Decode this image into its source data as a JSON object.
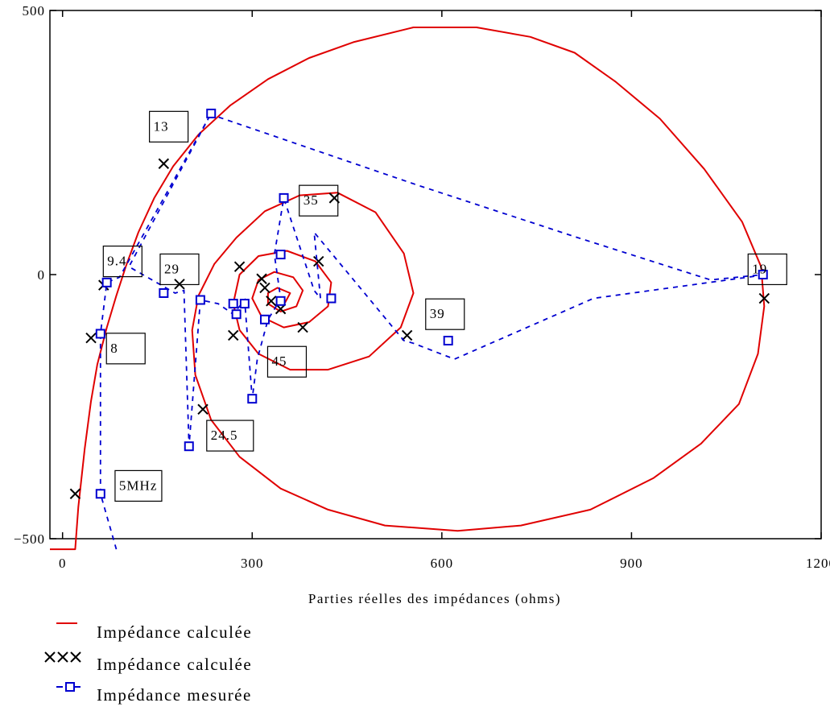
{
  "chart_data": {
    "type": "line",
    "xlabel": "Parties réelles des impédances (ohms)",
    "ylabel": "",
    "xlim": [
      -20,
      1200
    ],
    "ylim": [
      -500,
      500
    ],
    "xticks": [
      {
        "value": 0,
        "label": "0"
      },
      {
        "value": 300,
        "label": "300"
      },
      {
        "value": 600,
        "label": "600"
      },
      {
        "value": 900,
        "label": "900"
      },
      {
        "value": 1200,
        "label": "1200"
      }
    ],
    "yticks": [
      {
        "value": 500,
        "label": "500"
      },
      {
        "value": 0,
        "label": "0"
      },
      {
        "value": -500,
        "label": "−500"
      }
    ],
    "grid": false,
    "legend_position": "bottom-left",
    "colors": {
      "calc": "#e00000",
      "cross": "#000000",
      "meas": "#0000d0"
    },
    "series": [
      {
        "name": "Impédance calculée",
        "style": "solid-red",
        "points": [
          [
            -20,
            -520
          ],
          [
            20,
            -520
          ],
          [
            25,
            -440
          ],
          [
            35,
            -330
          ],
          [
            45,
            -240
          ],
          [
            55,
            -170
          ],
          [
            70,
            -100
          ],
          [
            85,
            -40
          ],
          [
            100,
            15
          ],
          [
            120,
            80
          ],
          [
            145,
            145
          ],
          [
            175,
            205
          ],
          [
            215,
            265
          ],
          [
            265,
            320
          ],
          [
            325,
            370
          ],
          [
            390,
            410
          ],
          [
            460,
            440
          ],
          [
            555,
            468
          ],
          [
            655,
            468
          ],
          [
            740,
            450
          ],
          [
            810,
            420
          ],
          [
            875,
            365
          ],
          [
            945,
            295
          ],
          [
            1015,
            200
          ],
          [
            1075,
            100
          ],
          [
            1105,
            15
          ],
          [
            1110,
            -60
          ],
          [
            1100,
            -150
          ],
          [
            1070,
            -245
          ],
          [
            1010,
            -320
          ],
          [
            935,
            -385
          ],
          [
            835,
            -445
          ],
          [
            725,
            -475
          ],
          [
            625,
            -485
          ],
          [
            510,
            -475
          ],
          [
            420,
            -445
          ],
          [
            345,
            -405
          ],
          [
            280,
            -345
          ],
          [
            235,
            -275
          ],
          [
            210,
            -190
          ],
          [
            205,
            -105
          ],
          [
            215,
            -40
          ],
          [
            240,
            20
          ],
          [
            275,
            70
          ],
          [
            320,
            120
          ],
          [
            375,
            150
          ],
          [
            435,
            155
          ],
          [
            495,
            118
          ],
          [
            540,
            40
          ],
          [
            555,
            -35
          ],
          [
            535,
            -100
          ],
          [
            485,
            -155
          ],
          [
            420,
            -180
          ],
          [
            360,
            -180
          ],
          [
            310,
            -150
          ],
          [
            280,
            -105
          ],
          [
            270,
            -55
          ],
          [
            280,
            0
          ],
          [
            310,
            35
          ],
          [
            355,
            45
          ],
          [
            400,
            25
          ],
          [
            425,
            -15
          ],
          [
            420,
            -60
          ],
          [
            390,
            -90
          ],
          [
            350,
            -100
          ],
          [
            315,
            -80
          ],
          [
            300,
            -45
          ],
          [
            310,
            -10
          ],
          [
            335,
            5
          ],
          [
            365,
            -5
          ],
          [
            380,
            -30
          ],
          [
            370,
            -60
          ],
          [
            345,
            -70
          ],
          [
            325,
            -55
          ],
          [
            325,
            -35
          ],
          [
            340,
            -25
          ],
          [
            360,
            -35
          ],
          [
            352,
            -53
          ],
          [
            338,
            -48
          ]
        ]
      },
      {
        "name": "Impédance calculée",
        "style": "black-x",
        "points": [
          [
            20,
            -415
          ],
          [
            45,
            -120
          ],
          [
            65,
            -20
          ],
          [
            160,
            210
          ],
          [
            185,
            -18
          ],
          [
            280,
            15
          ],
          [
            222,
            -255
          ],
          [
            270,
            -115
          ],
          [
            315,
            -8
          ],
          [
            320,
            -25
          ],
          [
            345,
            -65
          ],
          [
            330,
            -50
          ],
          [
            380,
            -100
          ],
          [
            405,
            25
          ],
          [
            430,
            145
          ],
          [
            545,
            -115
          ],
          [
            1110,
            -45
          ]
        ]
      },
      {
        "name": "Impédance mesurée",
        "style": "blue-dashed-square",
        "points": [
          [
            85,
            -520
          ],
          [
            60,
            -415
          ],
          [
            60,
            -112
          ],
          [
            70,
            -15
          ],
          [
            90,
            -5
          ],
          [
            235,
            305
          ],
          [
            105,
            15
          ],
          [
            178,
            -35
          ],
          [
            192,
            -30
          ],
          [
            200,
            -325
          ],
          [
            218,
            -48
          ],
          [
            246,
            -55
          ],
          [
            270,
            -75
          ],
          [
            288,
            -48
          ],
          [
            300,
            -235
          ],
          [
            308,
            -160
          ],
          [
            325,
            -85
          ],
          [
            342,
            -52
          ],
          [
            345,
            -45
          ],
          [
            335,
            38
          ],
          [
            350,
            145
          ],
          [
            398,
            -30
          ],
          [
            408,
            -45
          ],
          [
            398,
            80
          ],
          [
            540,
            -125
          ],
          [
            555,
            -130
          ],
          [
            620,
            -160
          ],
          [
            840,
            -45
          ],
          [
            1102,
            -2
          ],
          [
            1108,
            0
          ],
          [
            1025,
            -10
          ],
          [
            815,
            70
          ],
          [
            560,
            170
          ],
          [
            230,
            305
          ],
          [
            235,
            305
          ]
        ],
        "markers": [
          [
            60,
            -415
          ],
          [
            60,
            -112
          ],
          [
            70,
            -15
          ],
          [
            235,
            305
          ],
          [
            160,
            -35
          ],
          [
            218,
            -48
          ],
          [
            200,
            -325
          ],
          [
            270,
            -55
          ],
          [
            275,
            -75
          ],
          [
            288,
            -55
          ],
          [
            300,
            -235
          ],
          [
            320,
            -85
          ],
          [
            345,
            -50
          ],
          [
            345,
            38
          ],
          [
            350,
            145
          ],
          [
            425,
            -45
          ],
          [
            610,
            -125
          ],
          [
            1108,
            0
          ]
        ]
      }
    ],
    "annotations": [
      {
        "label": "13",
        "x": 168,
        "y": 280
      },
      {
        "label": "35",
        "x": 405,
        "y": 140
      },
      {
        "label": "9.4",
        "x": 95,
        "y": 25
      },
      {
        "label": "29",
        "x": 185,
        "y": 10
      },
      {
        "label": "19",
        "x": 1115,
        "y": 10
      },
      {
        "label": "39",
        "x": 605,
        "y": -75
      },
      {
        "label": "8",
        "x": 100,
        "y": -140
      },
      {
        "label": "45",
        "x": 355,
        "y": -165
      },
      {
        "label": "24.5",
        "x": 265,
        "y": -305
      },
      {
        "label": "5MHz",
        "x": 120,
        "y": -400
      }
    ]
  }
}
